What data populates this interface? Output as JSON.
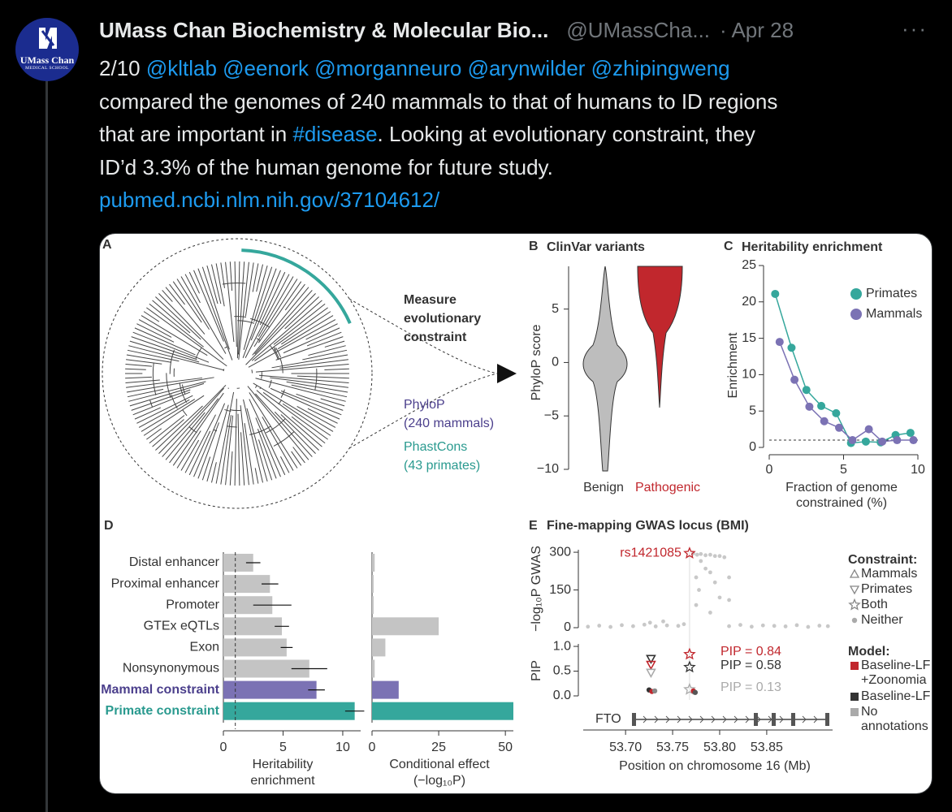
{
  "tweet": {
    "avatar": {
      "name": "UMass Chan",
      "sub": "MEDICAL SCHOOL"
    },
    "author": "UMass Chan Biochemistry & Molecular Bio...",
    "handle": "@UMassCha...",
    "date": "· Apr 28",
    "more": "···",
    "lines": [
      [
        {
          "text": "2/10 "
        },
        {
          "text": "@kltlab ",
          "link": true
        },
        {
          "text": "@eenork ",
          "link": true
        },
        {
          "text": "@morganneuro ",
          "link": true
        },
        {
          "text": "@arynwilder ",
          "link": true
        },
        {
          "text": "@zhipingweng",
          "link": true
        }
      ],
      [
        {
          "text": "compared the genomes of 240 mammals to that of humans to ID regions"
        }
      ],
      [
        {
          "text": "that are important in "
        },
        {
          "text": "#disease",
          "link": true
        },
        {
          "text": ". Looking at evolutionary constraint, they"
        }
      ],
      [
        {
          "text": "ID’d 3.3% of the human genome for future study."
        }
      ],
      [
        {
          "text": "pubmed.ncbi.nlm.nih.gov/37104612/",
          "link": true
        }
      ]
    ]
  },
  "figure": {
    "a": {
      "label": "A",
      "caption": [
        "Measure",
        "evolutionary",
        "constraint"
      ],
      "phylop": [
        "PhyloP",
        "(240 mammals)"
      ],
      "phastcons": [
        "PhastCons",
        "(43 primates)"
      ]
    },
    "b": {
      "label": "B",
      "title": "ClinVar variants",
      "ylabel": "PhyloP score",
      "ylim": [
        -10,
        9
      ],
      "yticks": [
        {
          "value": -10,
          "label": "−10"
        },
        {
          "value": -5,
          "label": "−5"
        },
        0,
        5
      ],
      "categories": [
        "Benign",
        "Pathogenic"
      ],
      "colors": [
        "#bdbdbd",
        "#c1272d"
      ],
      "label_colors": [
        "#333333",
        "#c1272d"
      ]
    },
    "c": {
      "label": "C",
      "title": "Heritability enrichment",
      "ylabel": "Enrichment",
      "xlabel": [
        "Fraction of genome",
        "constrained (%)"
      ],
      "xlim": [
        0,
        10
      ],
      "xticks": [
        0,
        5,
        10
      ],
      "ylim": [
        0,
        25
      ],
      "yticks": [
        0,
        5,
        10,
        15,
        20,
        25
      ],
      "hline": 1,
      "series": [
        {
          "name": "Primates",
          "color": "#35a79c",
          "x": [
            0.4,
            1.5,
            2.5,
            3.5,
            4.5,
            5.5,
            6.5,
            7.5,
            8.5,
            9.5
          ],
          "values": [
            21.1,
            13.7,
            7.9,
            5.7,
            4.7,
            0.6,
            0.8,
            0.7,
            1.7,
            2.0
          ]
        },
        {
          "name": "Mammals",
          "color": "#7b72b4",
          "x": [
            0.7,
            1.7,
            2.7,
            3.7,
            4.7,
            5.6,
            6.7,
            7.6,
            8.6,
            9.7
          ],
          "values": [
            14.5,
            9.3,
            5.6,
            3.6,
            2.7,
            1.0,
            2.5,
            0.8,
            1.0,
            1.0
          ]
        }
      ]
    },
    "d": {
      "label": "D",
      "categories": [
        "Distal enhancer",
        "Proximal enhancer",
        "Promoter",
        "GTEx eQTLs",
        "Exon",
        "Nonsynonymous",
        "Mammal constraint",
        "Primate constraint"
      ],
      "colors": [
        "#c4c4c4",
        "#c4c4c4",
        "#c4c4c4",
        "#c4c4c4",
        "#c4c4c4",
        "#c4c4c4",
        "#7b72b4",
        "#35a79c"
      ],
      "label_colors": [
        "#333333",
        "#333333",
        "#333333",
        "#333333",
        "#333333",
        "#333333",
        "#4b3f8c",
        "#2a9a8f"
      ],
      "heritability": {
        "xlabel": [
          "Heritability",
          "enrichment"
        ],
        "xlim": [
          0,
          11.5
        ],
        "xticks": [
          0,
          5,
          10
        ],
        "vline": 1,
        "values": [
          2.5,
          3.9,
          4.1,
          4.9,
          5.3,
          7.2,
          7.8,
          11.0
        ],
        "errors": [
          0.6,
          0.7,
          1.6,
          0.6,
          0.5,
          1.5,
          0.7,
          0.8
        ]
      },
      "conditional": {
        "xlabel": [
          "Conditional effect",
          "(−log₁₀P)"
        ],
        "xlim": [
          0,
          53
        ],
        "xticks": [
          0,
          25,
          50
        ],
        "values": [
          1.0,
          0.6,
          0.6,
          25,
          5,
          1,
          10,
          53
        ]
      }
    },
    "e": {
      "label": "E",
      "title": "Fine-mapping GWAS locus (BMI)",
      "xlabel": "Position on chromosome 16 (Mb)",
      "xlim": [
        53.655,
        53.92
      ],
      "xticks": [
        {
          "value": 53.7,
          "label": "53.70"
        },
        53.75,
        {
          "value": 53.8,
          "label": "53.80"
        },
        53.85
      ],
      "gene": "FTO",
      "gwas": {
        "ylabel": "−log₁₀P GWAS",
        "ylim": [
          0,
          310
        ],
        "yticks": [
          0,
          150,
          300
        ],
        "color": "#c8c8c8",
        "x": [
          53.66,
          53.672,
          53.684,
          53.696,
          53.708,
          53.72,
          53.732,
          53.744,
          53.756,
          53.762,
          53.81,
          53.822,
          53.834,
          53.846,
          53.858,
          53.87,
          53.882,
          53.894,
          53.906,
          53.915,
          53.726,
          53.74,
          53.772,
          53.776,
          53.78,
          53.785,
          53.79,
          53.795,
          53.8,
          53.805,
          53.785,
          53.775,
          53.778,
          53.79,
          53.795,
          53.8,
          53.81,
          53.81,
          53.775,
          53.79,
          53.78
        ],
        "values": [
          4,
          8,
          3,
          10,
          6,
          12,
          5,
          9,
          7,
          14,
          6,
          11,
          4,
          9,
          7,
          5,
          10,
          3,
          8,
          6,
          20,
          25,
          295,
          290,
          293,
          288,
          290,
          285,
          285,
          280,
          235,
          200,
          150,
          220,
          180,
          120,
          200,
          110,
          90,
          60,
          265
        ],
        "lead": {
          "name": "rs1421085",
          "x": 53.768,
          "value": 296,
          "color": "#c1272d"
        }
      },
      "pip": {
        "ylabel": "PIP",
        "ylim": [
          0,
          1.05
        ],
        "yticks": [
          {
            "value": 0,
            "label": "0.0"
          },
          0.5,
          {
            "value": 1,
            "label": "1.0"
          }
        ],
        "x": [
          53.727,
          53.727,
          53.727,
          53.725,
          53.728,
          53.731,
          53.768,
          53.768,
          53.768,
          53.772,
          53.774
        ],
        "values": [
          0.75,
          0.63,
          0.47,
          0.12,
          0.09,
          0.1,
          0.84,
          0.58,
          0.13,
          0.1,
          0.07
        ],
        "shapes": [
          "triangle-down",
          "triangle-down",
          "triangle-down",
          "dot",
          "dot",
          "dot",
          "star",
          "star",
          "star",
          "dot",
          "dot"
        ],
        "colors": [
          "#333333",
          "#c1272d",
          "#aaaaaa",
          "#333333",
          "#c1272d",
          "#888888",
          "#c1272d",
          "#333333",
          "#aaaaaa",
          "#c1272d",
          "#555555"
        ],
        "annotations": [
          {
            "text": "PIP = 0.84",
            "color": "#c1272d"
          },
          {
            "text": "PIP = 0.58",
            "color": "#333333"
          },
          {
            "text": "PIP = 0.13",
            "color": "#aaaaaa"
          }
        ]
      },
      "legend": [
        {
          "title": "Constraint:",
          "items": [
            {
              "label": [
                "Mammals"
              ],
              "shape": "triangle-up",
              "color": "#888888",
              "open": true
            },
            {
              "label": [
                "Primates"
              ],
              "shape": "triangle-down",
              "color": "#888888",
              "open": true
            },
            {
              "label": [
                "Both"
              ],
              "shape": "star",
              "color": "#888888",
              "open": true
            },
            {
              "label": [
                "Neither"
              ],
              "shape": "dot",
              "color": "#aaaaaa",
              "open": false
            }
          ]
        },
        {
          "title": "Model:",
          "items": [
            {
              "label": [
                "Baseline-LF",
                "+Zoonomia"
              ],
              "shape": "square",
              "color": "#c1272d",
              "open": false
            },
            {
              "label": [
                "Baseline-LF"
              ],
              "shape": "square",
              "color": "#333333",
              "open": false
            },
            {
              "label": [
                "No",
                "annotations"
              ],
              "shape": "square",
              "color": "#aaaaaa",
              "open": false
            }
          ]
        }
      ]
    }
  }
}
